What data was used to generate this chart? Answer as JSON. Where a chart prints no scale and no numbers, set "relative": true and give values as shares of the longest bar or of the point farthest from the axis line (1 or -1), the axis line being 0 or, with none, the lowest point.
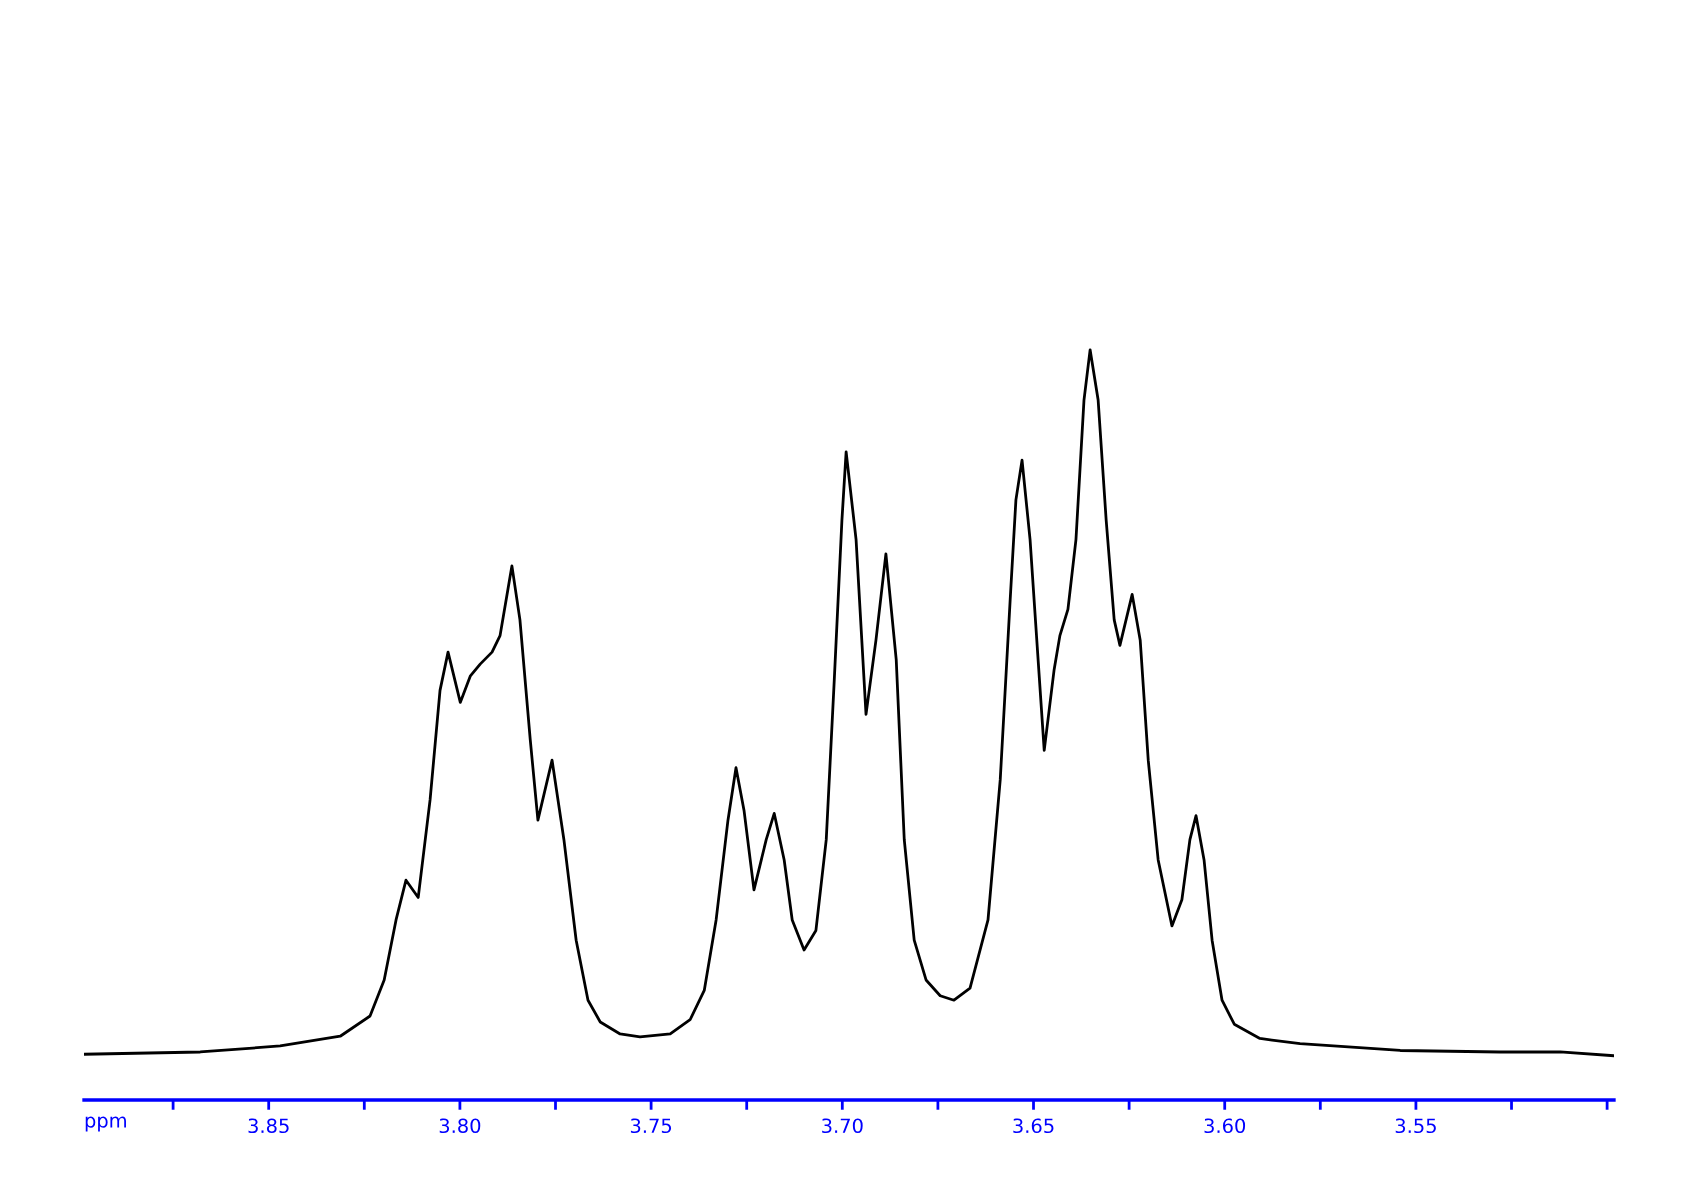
{
  "chart_data": {
    "type": "line",
    "xlabel": "ppm",
    "relative": true,
    "grid": false,
    "legend": false,
    "marker": "none",
    "line_style": "solid",
    "xlim": [
      3.8983,
      3.4982
    ],
    "xticks": [
      {
        "value": 3.875,
        "label": null
      },
      3.85,
      {
        "value": 3.825,
        "label": null
      },
      {
        "value": 3.8,
        "label": "3.80"
      },
      {
        "value": 3.775,
        "label": null
      },
      3.75,
      {
        "value": 3.725,
        "label": null
      },
      {
        "value": 3.7,
        "label": "3.70"
      },
      {
        "value": 3.675,
        "label": null
      },
      3.65,
      {
        "value": 3.625,
        "label": null
      },
      {
        "value": 3.6,
        "label": "3.60"
      },
      {
        "value": 3.575,
        "label": null
      },
      3.55,
      {
        "value": 3.525,
        "label": null
      },
      {
        "value": 3.5,
        "label": null
      }
    ],
    "series": [
      {
        "color": "#000000",
        "x": [
          3.8983,
          3.8679,
          3.847,
          3.8313,
          3.8235,
          3.8198,
          3.8167,
          3.8141,
          3.8109,
          3.8078,
          3.8052,
          3.8031,
          3.7999,
          3.7973,
          3.7947,
          3.7916,
          3.7895,
          3.7864,
          3.7843,
          3.7816,
          3.7796,
          3.7759,
          3.7728,
          3.7696,
          3.7665,
          3.7633,
          3.7581,
          3.7529,
          3.745,
          3.7398,
          3.7361,
          3.733,
          3.7299,
          3.7278,
          3.7257,
          3.7231,
          3.7199,
          3.7178,
          3.7152,
          3.7131,
          3.71,
          3.7069,
          3.7042,
          3.7021,
          3.7001,
          3.699,
          3.6964,
          3.6938,
          3.6912,
          3.6886,
          3.6859,
          3.6838,
          3.6812,
          3.6781,
          3.6744,
          3.6708,
          3.6666,
          3.6619,
          3.6587,
          3.6561,
          3.6546,
          3.653,
          3.6509,
          3.6488,
          3.6472,
          3.6446,
          3.6431,
          3.641,
          3.6389,
          3.6368,
          3.6352,
          3.6331,
          3.631,
          3.6289,
          3.6274,
          3.6242,
          3.6221,
          3.62,
          3.6174,
          3.6138,
          3.6112,
          3.6091,
          3.6075,
          3.6054,
          3.6033,
          3.6007,
          3.5975,
          3.5908,
          3.5803,
          3.5541,
          3.528,
          3.5123,
          3.4982
        ],
        "values": [
          0.061,
          0.064,
          0.072,
          0.085,
          0.112,
          0.16,
          0.24,
          0.293,
          0.27,
          0.4,
          0.546,
          0.597,
          0.53,
          0.565,
          0.581,
          0.597,
          0.619,
          0.712,
          0.64,
          0.48,
          0.373,
          0.453,
          0.347,
          0.213,
          0.133,
          0.104,
          0.088,
          0.084,
          0.088,
          0.107,
          0.146,
          0.24,
          0.373,
          0.443,
          0.386,
          0.28,
          0.347,
          0.382,
          0.32,
          0.24,
          0.2,
          0.226,
          0.347,
          0.56,
          0.773,
          0.864,
          0.747,
          0.514,
          0.613,
          0.728,
          0.587,
          0.347,
          0.213,
          0.16,
          0.139,
          0.133,
          0.149,
          0.24,
          0.427,
          0.667,
          0.8,
          0.853,
          0.747,
          0.587,
          0.466,
          0.574,
          0.619,
          0.654,
          0.747,
          0.933,
          1,
          0.933,
          0.773,
          0.64,
          0.606,
          0.674,
          0.613,
          0.453,
          0.32,
          0.232,
          0.267,
          0.347,
          0.379,
          0.32,
          0.213,
          0.133,
          0.101,
          0.082,
          0.075,
          0.066,
          0.064,
          0.064,
          0.059
        ]
      }
    ]
  }
}
